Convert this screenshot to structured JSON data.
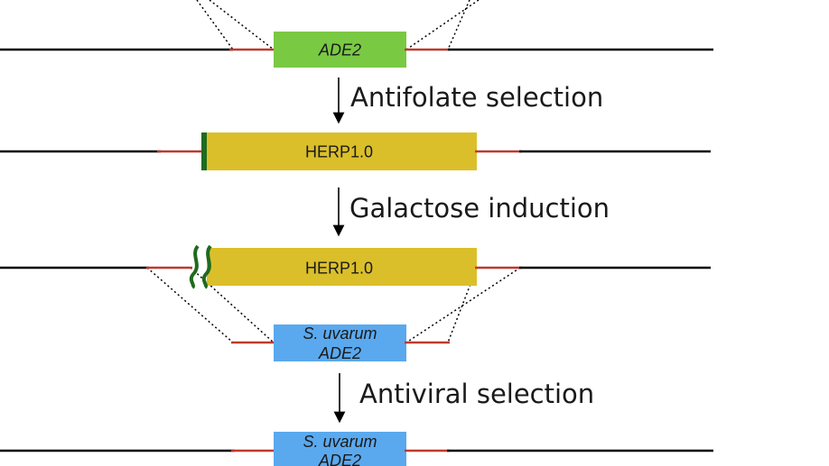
{
  "colors": {
    "ade2_box": "#7ac943",
    "herp_box": "#dbbf2a",
    "uvarum_box": "#5aa9ee",
    "flank": "#c0392b",
    "marker": "#1e6b1e",
    "genome": "#000000"
  },
  "rows": {
    "row1": {
      "box_label": "ADE2"
    },
    "row2": {
      "box_label": "HERP1.0"
    },
    "row3": {
      "box_label": "HERP1.0"
    },
    "row4": {
      "box_label_line1": "S. uvarum",
      "box_label_line2": "ADE2"
    },
    "row5": {
      "box_label_line1": "S. uvarum",
      "box_label_line2": "ADE2"
    }
  },
  "steps": {
    "step1": {
      "label": "Antifolate selection"
    },
    "step2": {
      "label": "Galactose induction"
    },
    "step3": {
      "label": "Antiviral selection"
    }
  }
}
